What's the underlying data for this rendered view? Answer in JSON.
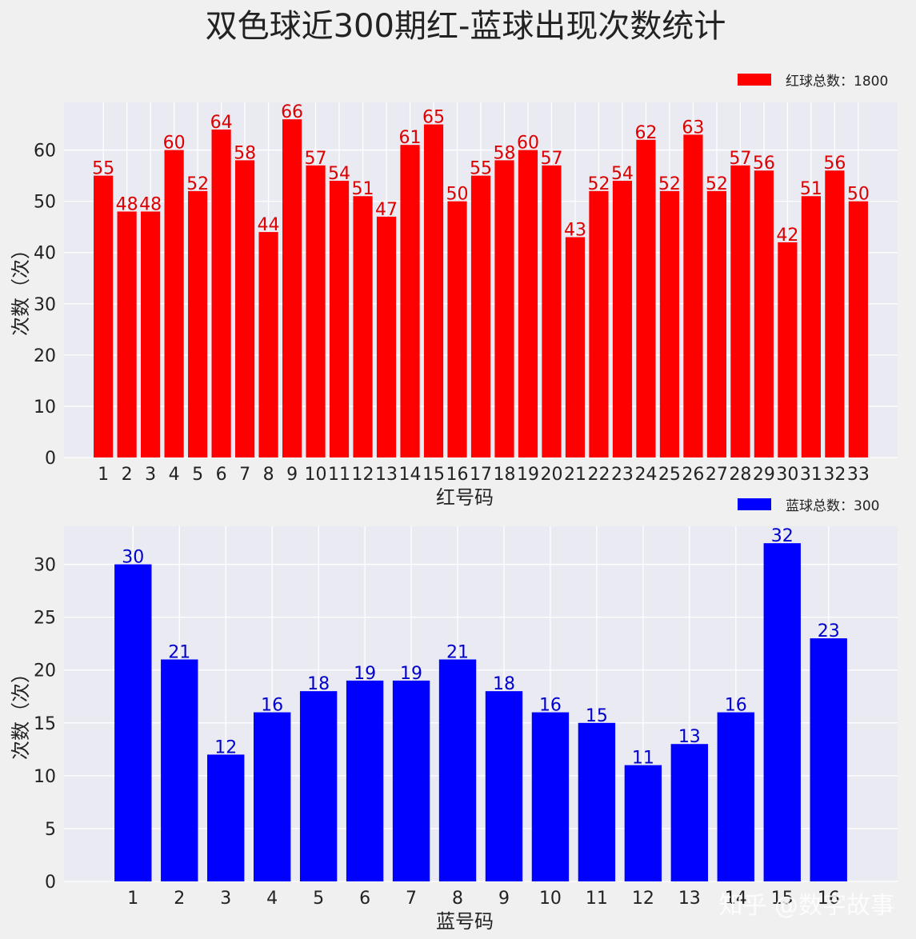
{
  "title": "双色球近300期红-蓝球出现次数统计",
  "watermark": "知乎 @数字故事",
  "chart_data": [
    {
      "type": "bar",
      "title": "双色球近300期红-蓝球出现次数统计",
      "xlabel": "红号码",
      "ylabel": "次数（次）",
      "legend": "红球总数：1800",
      "legend_position": "top-right",
      "color": "#ff0000",
      "label_color": "#dd0000",
      "grid": true,
      "ylim": [
        0,
        69.3
      ],
      "yticks": [
        0,
        10,
        20,
        30,
        40,
        50,
        60
      ],
      "categories": [
        "1",
        "2",
        "3",
        "4",
        "5",
        "6",
        "7",
        "8",
        "9",
        "10",
        "11",
        "12",
        "13",
        "14",
        "15",
        "16",
        "17",
        "18",
        "19",
        "20",
        "21",
        "22",
        "23",
        "24",
        "25",
        "26",
        "27",
        "28",
        "29",
        "30",
        "31",
        "32",
        "33"
      ],
      "values": [
        55,
        48,
        48,
        60,
        52,
        64,
        58,
        44,
        66,
        57,
        54,
        51,
        47,
        61,
        65,
        50,
        55,
        58,
        60,
        57,
        43,
        52,
        54,
        62,
        52,
        63,
        52,
        57,
        56,
        42,
        51,
        56,
        50
      ]
    },
    {
      "type": "bar",
      "xlabel": "蓝号码",
      "ylabel": "次数（次）",
      "legend": "蓝球总数：300",
      "legend_position": "top-right",
      "color": "#0000ff",
      "label_color": "#0000cc",
      "grid": true,
      "ylim": [
        0,
        33.6
      ],
      "yticks": [
        0,
        5,
        10,
        15,
        20,
        25,
        30
      ],
      "categories": [
        "1",
        "2",
        "3",
        "4",
        "5",
        "6",
        "7",
        "8",
        "9",
        "10",
        "11",
        "12",
        "13",
        "14",
        "15",
        "16"
      ],
      "values": [
        30,
        21,
        12,
        16,
        18,
        19,
        19,
        21,
        18,
        16,
        15,
        11,
        13,
        16,
        32,
        23
      ]
    }
  ]
}
